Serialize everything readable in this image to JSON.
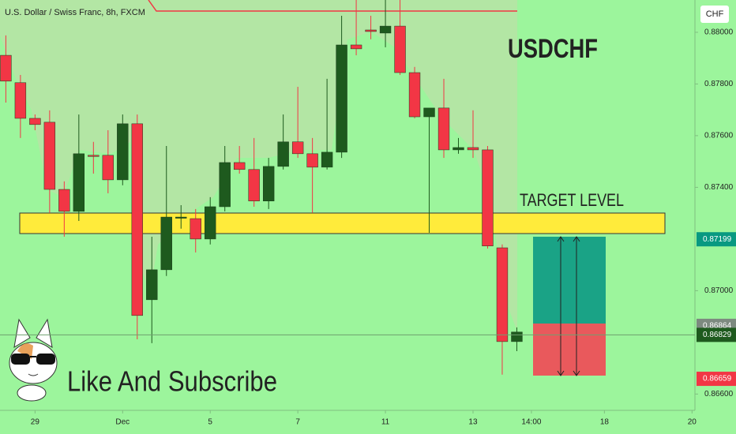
{
  "chart_data": {
    "type": "candlestick",
    "title": "U.S. Dollar / Swiss Franc, 8h, FXCM",
    "symbol_label": "USDCHF",
    "target_label": "TARGET LEVEL",
    "subscribe_label": "Like And Subscribe",
    "currency": "CHF",
    "up_color": "#1e5a1e",
    "down_color": "#f23645",
    "x": [
      0,
      1,
      2,
      3,
      4,
      5,
      6,
      7,
      8,
      9,
      10,
      11,
      12,
      13,
      14,
      15,
      16,
      17,
      18,
      19,
      20,
      21,
      22,
      23,
      24,
      25,
      26,
      27,
      28,
      29,
      30,
      31,
      32,
      33,
      34,
      35
    ],
    "open": [
      0.87911,
      0.87805,
      0.87667,
      0.87652,
      0.87392,
      0.87307,
      0.87524,
      0.87524,
      0.87429,
      0.87646,
      0.86965,
      0.87081,
      0.87285,
      0.87279,
      0.872,
      0.87325,
      0.87496,
      0.87469,
      0.87347,
      0.87481,
      0.87576,
      0.8753,
      0.87478,
      0.87536,
      0.87951,
      0.88009,
      0.87997,
      0.88024,
      0.87844,
      0.87673,
      0.87707,
      0.87545,
      0.87554,
      0.87545,
      0.87166,
      0.86803
    ],
    "high": [
      0.87988,
      0.87835,
      0.87682,
      0.87698,
      0.87423,
      0.87682,
      0.87576,
      0.87621,
      0.87682,
      0.87682,
      0.87209,
      0.8756,
      0.87331,
      0.87316,
      0.87362,
      0.8756,
      0.8756,
      0.87591,
      0.87514,
      0.87682,
      0.87789,
      0.87591,
      0.8782,
      0.88064,
      0.88125,
      0.88064,
      0.88125,
      0.88125,
      0.87866,
      0.87698,
      0.8782,
      0.87591,
      0.87698,
      0.8756,
      0.87179,
      0.86858
    ],
    "low": [
      0.87728,
      0.87591,
      0.87621,
      0.87301,
      0.87209,
      0.8727,
      0.87453,
      0.87377,
      0.87408,
      0.86812,
      0.86797,
      0.87057,
      0.8724,
      0.87148,
      0.87179,
      0.87307,
      0.87453,
      0.87325,
      0.87316,
      0.87469,
      0.87514,
      0.87301,
      0.87469,
      0.87514,
      0.87911,
      0.87973,
      0.87942,
      0.87835,
      0.87667,
      0.87224,
      0.87514,
      0.8753,
      0.87514,
      0.87163,
      0.86675,
      0.86766
    ],
    "close": [
      0.87811,
      0.87667,
      0.87643,
      0.87392,
      0.87307,
      0.8753,
      0.87521,
      0.87429,
      0.87646,
      0.86904,
      0.87081,
      0.87285,
      0.87285,
      0.872,
      0.87325,
      0.87496,
      0.87469,
      0.87347,
      0.87481,
      0.87576,
      0.8753,
      0.87478,
      0.87536,
      0.87951,
      0.87936,
      0.88003,
      0.88024,
      0.87844,
      0.87673,
      0.87707,
      0.87545,
      0.87554,
      0.87545,
      0.87173,
      0.86803,
      0.8684
    ],
    "xlim": [
      -0.4,
      47.2
    ],
    "xticks": [
      {
        "value": 2,
        "label": "29"
      },
      {
        "value": 8,
        "label": "Dec"
      },
      {
        "value": 14,
        "label": "5"
      },
      {
        "value": 20,
        "label": "7"
      },
      {
        "value": 26,
        "label": "11"
      },
      {
        "value": 32,
        "label": "13"
      },
      {
        "value": 36,
        "label": "14:00"
      },
      {
        "value": 41,
        "label": "18"
      },
      {
        "value": 47,
        "label": "20"
      }
    ],
    "ylim": [
      0.86537,
      0.88125
    ],
    "yticks": [
      {
        "value": 0.88,
        "label": "0.88000"
      },
      {
        "value": 0.878,
        "label": "0.87800"
      },
      {
        "value": 0.876,
        "label": "0.87600"
      },
      {
        "value": 0.874,
        "label": "0.87400"
      },
      {
        "value": 0.87,
        "label": "0.87000"
      },
      {
        "value": 0.866,
        "label": "0.86600"
      }
    ],
    "price_badges": [
      {
        "value": 0.87199,
        "label": "0.87199",
        "color": "#089981"
      },
      {
        "value": 0.86864,
        "label": "0.86864",
        "color": "#7d8a80"
      },
      {
        "value": 0.86829,
        "label": "0.86829",
        "color": "#1e5a1e"
      },
      {
        "value": 0.86659,
        "label": "0.86659",
        "color": "#f23645"
      }
    ]
  }
}
